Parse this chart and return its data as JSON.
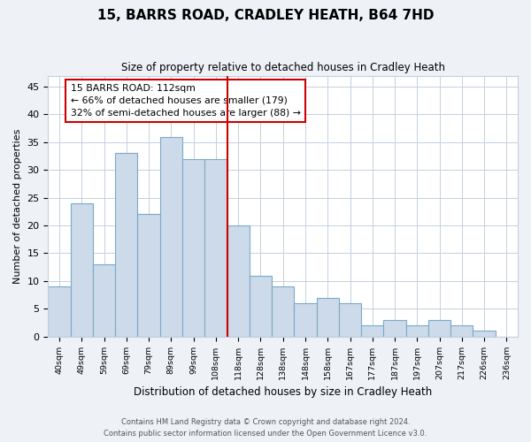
{
  "title": "15, BARRS ROAD, CRADLEY HEATH, B64 7HD",
  "subtitle": "Size of property relative to detached houses in Cradley Heath",
  "xlabel": "Distribution of detached houses by size in Cradley Heath",
  "ylabel": "Number of detached properties",
  "footnote1": "Contains HM Land Registry data © Crown copyright and database right 2024.",
  "footnote2": "Contains public sector information licensed under the Open Government Licence v3.0.",
  "bar_labels": [
    "40sqm",
    "49sqm",
    "59sqm",
    "69sqm",
    "79sqm",
    "89sqm",
    "99sqm",
    "108sqm",
    "118sqm",
    "128sqm",
    "138sqm",
    "148sqm",
    "158sqm",
    "167sqm",
    "177sqm",
    "187sqm",
    "197sqm",
    "207sqm",
    "217sqm",
    "226sqm",
    "236sqm"
  ],
  "bar_values": [
    9,
    24,
    13,
    33,
    22,
    36,
    32,
    32,
    20,
    11,
    9,
    6,
    7,
    6,
    2,
    3,
    2,
    3,
    2,
    1,
    0
  ],
  "bar_color": "#ccdaea",
  "bar_edge_color": "#7aaac8",
  "ylim": [
    0,
    47
  ],
  "yticks": [
    0,
    5,
    10,
    15,
    20,
    25,
    30,
    35,
    40,
    45
  ],
  "red_line_x": 7.5,
  "annotation_title": "15 BARRS ROAD: 112sqm",
  "annotation_line1": "← 66% of detached houses are smaller (179)",
  "annotation_line2": "32% of semi-detached houses are larger (88) →",
  "bg_color": "#eef2f7",
  "plot_bg_color": "#ffffff",
  "grid_color": "#c5cfe0"
}
